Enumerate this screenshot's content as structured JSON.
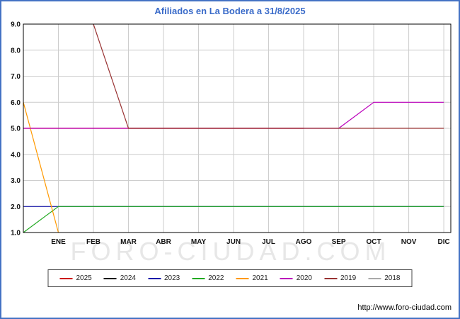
{
  "title": "Afiliados en La Bodera a 31/8/2025",
  "title_color": "#3a6bc9",
  "watermark": "FORO-CIUDAD.COM",
  "footer_url": "http://www.foro-ciudad.com",
  "chart_data": {
    "type": "line",
    "title": "Afiliados en La Bodera a 31/8/2025",
    "xlabel": "",
    "ylabel": "",
    "ylim": [
      1.0,
      9.0
    ],
    "y_ticks": [
      1.0,
      2.0,
      3.0,
      4.0,
      5.0,
      6.0,
      7.0,
      8.0,
      9.0
    ],
    "x_tick_labels": [
      "ENE",
      "FEB",
      "MAR",
      "ABR",
      "MAY",
      "JUN",
      "JUL",
      "AGO",
      "SEP",
      "OCT",
      "NOV",
      "DIC"
    ],
    "grid": true,
    "legend_position": "bottom",
    "note_x_units": "0 = eje izquierdo, 1..12 = meses ENE..DIC",
    "series": [
      {
        "name": "2025",
        "color": "#cc0000",
        "points": [
          [
            0,
            5
          ],
          [
            8,
            5
          ]
        ]
      },
      {
        "name": "2024",
        "color": "#000000",
        "points": []
      },
      {
        "name": "2023",
        "color": "#1a1aaa",
        "points": [
          [
            0,
            2
          ],
          [
            12,
            2
          ]
        ]
      },
      {
        "name": "2022",
        "color": "#22aa22",
        "points": [
          [
            0,
            1
          ],
          [
            1,
            2
          ],
          [
            12,
            2
          ]
        ]
      },
      {
        "name": "2021",
        "color": "#ff9900",
        "points": [
          [
            0,
            6
          ],
          [
            1,
            1
          ]
        ]
      },
      {
        "name": "2020",
        "color": "#bb00bb",
        "points": [
          [
            0,
            5
          ],
          [
            9,
            5
          ],
          [
            10,
            6
          ],
          [
            12,
            6
          ]
        ]
      },
      {
        "name": "2019",
        "color": "#993333",
        "points": [
          [
            2,
            9
          ],
          [
            3,
            5
          ],
          [
            12,
            5
          ]
        ]
      },
      {
        "name": "2018",
        "color": "#aaaaaa",
        "points": []
      }
    ]
  }
}
